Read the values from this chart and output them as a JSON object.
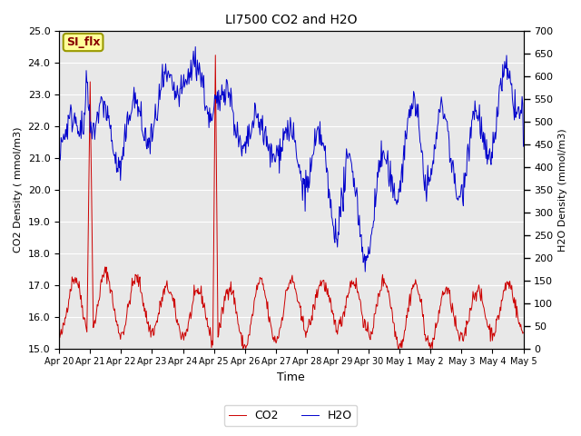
{
  "title": "LI7500 CO2 and H2O",
  "xlabel": "Time",
  "ylabel_left": "CO2 Density ( mmol/m3)",
  "ylabel_right": "H2O Density (mmol/m3)",
  "ylim_left": [
    15.0,
    25.0
  ],
  "ylim_right": [
    0,
    700
  ],
  "yticks_left": [
    15.0,
    16.0,
    17.0,
    18.0,
    19.0,
    20.0,
    21.0,
    22.0,
    23.0,
    24.0,
    25.0
  ],
  "yticks_right": [
    0,
    50,
    100,
    150,
    200,
    250,
    300,
    350,
    400,
    450,
    500,
    550,
    600,
    650,
    700
  ],
  "xtick_labels": [
    "Apr 20",
    "Apr 21",
    "Apr 22",
    "Apr 23",
    "Apr 24",
    "Apr 25",
    "Apr 26",
    "Apr 27",
    "Apr 28",
    "Apr 29",
    "Apr 30",
    "May 1",
    "May 2",
    "May 3",
    "May 4",
    "May 5"
  ],
  "co2_color": "#CC0000",
  "h2o_color": "#0000CC",
  "plot_bg_color": "#E8E8E8",
  "grid_color": "#FFFFFF",
  "annotation_text": "SI_flx",
  "annotation_bg": "#FFFF99",
  "annotation_border": "#999900",
  "legend_entries": [
    "CO2",
    "H2O"
  ]
}
